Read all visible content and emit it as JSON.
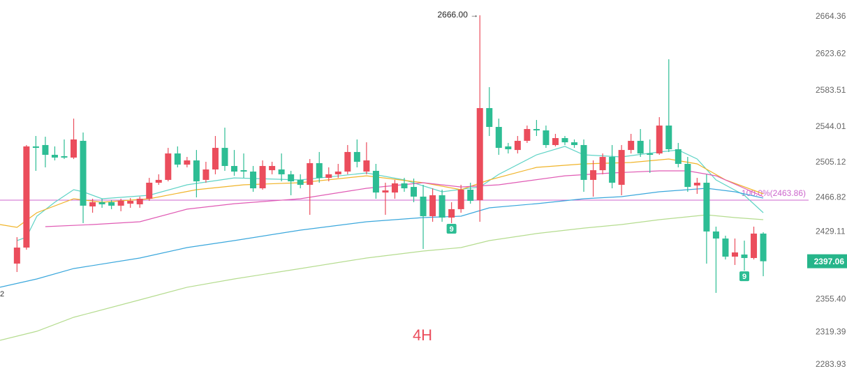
{
  "chart_data": {
    "type": "candlestick",
    "timeframe": "4H",
    "xlim": [
      -1.8,
      83.8
    ],
    "ylim": [
      2277.07,
      2682.66
    ],
    "yticks": [
      2664.36,
      2623.62,
      2583.51,
      2544.01,
      2505.12,
      2466.82,
      2429.11,
      {
        "value": 2355.4,
        "label": "2355.40"
      },
      2319.39,
      2283.93
    ],
    "up_color": "#eb4d5c",
    "down_color": "#2dbd94",
    "x": [
      0,
      1,
      2,
      3,
      4,
      5,
      6,
      7,
      8,
      9,
      10,
      11,
      12,
      13,
      14,
      15,
      16,
      17,
      18,
      19,
      20,
      21,
      22,
      23,
      24,
      25,
      26,
      27,
      28,
      29,
      30,
      31,
      32,
      33,
      34,
      35,
      36,
      37,
      38,
      39,
      40,
      41,
      42,
      43,
      44,
      45,
      46,
      47,
      48,
      49,
      50,
      51,
      52,
      53,
      54,
      55,
      56,
      57,
      58,
      59,
      60,
      61,
      62,
      63,
      64,
      65,
      66,
      67,
      68,
      69,
      70,
      71,
      72,
      73,
      74,
      75,
      76,
      77,
      78,
      79
    ],
    "open": [
      2394.5,
      2412.0,
      2522.6,
      2524.1,
      2513.4,
      2511.9,
      2510.4,
      2528.7,
      2457.0,
      2461.6,
      2461.6,
      2457.8,
      2460.0,
      2459.3,
      2465.4,
      2482.9,
      2486.0,
      2514.9,
      2502.7,
      2507.3,
      2486.0,
      2497.4,
      2521.0,
      2501.2,
      2496.6,
      2495.1,
      2476.8,
      2496.6,
      2497.4,
      2492.1,
      2486.0,
      2480.6,
      2504.3,
      2488.2,
      2492.1,
      2495.1,
      2516.5,
      2495.1,
      2495.9,
      2472.2,
      2472.2,
      2482.2,
      2478.3,
      2467.7,
      2446.3,
      2469.2,
      2444.8,
      2454.0,
      2475.3,
      2463.8,
      2564.5,
      2543.9,
      2522.6,
      2518.7,
      2528.7,
      2541.6,
      2540.1,
      2524.1,
      2531.7,
      2527.1,
      2524.1,
      2486.0,
      2496.6,
      2511.1,
      2480.6,
      2518.7,
      2528.7,
      2514.9,
      2514.9,
      2545.4,
      2519.5,
      2503.5,
      2479.9,
      2482.9,
      2429.6,
      2421.9,
      2402.1,
      2404.4,
      2400.6,
      2427.3
    ],
    "high": [
      2423.4,
      2524.1,
      2534.0,
      2533.2,
      2522.6,
      2530.2,
      2553.0,
      2537.8,
      2465.4,
      2465.4,
      2463.9,
      2465.4,
      2466.1,
      2467.7,
      2488.2,
      2492.1,
      2521.0,
      2522.6,
      2511.1,
      2518.7,
      2505.8,
      2534.0,
      2543.1,
      2518.7,
      2514.9,
      2501.2,
      2507.3,
      2505.8,
      2514.9,
      2495.9,
      2492.1,
      2508.8,
      2516.5,
      2499.7,
      2503.5,
      2524.1,
      2530.2,
      2527.1,
      2503.5,
      2482.9,
      2486.0,
      2488.2,
      2487.5,
      2480.6,
      2476.8,
      2475.3,
      2461.6,
      2480.6,
      2482.9,
      2666.0,
      2587.4,
      2553.0,
      2526.4,
      2534.0,
      2545.4,
      2551.5,
      2545.4,
      2536.3,
      2534.0,
      2530.2,
      2530.2,
      2507.3,
      2514.9,
      2524.1,
      2524.1,
      2536.3,
      2541.6,
      2530.2,
      2554.6,
      2617.9,
      2526.4,
      2511.1,
      2488.2,
      2492.1,
      2434.9,
      2425.0,
      2421.9,
      2419.6,
      2434.9,
      2428.8
    ],
    "low": [
      2385.3,
      2409.7,
      2495.9,
      2499.7,
      2507.3,
      2508.8,
      2508.8,
      2438.7,
      2450.1,
      2455.5,
      2454.0,
      2451.7,
      2455.5,
      2455.5,
      2463.1,
      2480.6,
      2484.4,
      2499.7,
      2499.7,
      2466.9,
      2482.9,
      2492.1,
      2495.9,
      2490.5,
      2488.2,
      2473.0,
      2475.3,
      2492.1,
      2484.4,
      2469.2,
      2476.8,
      2447.8,
      2482.9,
      2484.4,
      2488.2,
      2492.1,
      2499.7,
      2492.1,
      2465.4,
      2447.8,
      2465.4,
      2473.0,
      2461.6,
      2410.5,
      2440.2,
      2440.2,
      2438.7,
      2450.1,
      2460.0,
      2440.2,
      2534.0,
      2513.4,
      2514.9,
      2514.9,
      2526.4,
      2534.0,
      2521.0,
      2522.6,
      2524.1,
      2521.0,
      2473.0,
      2467.7,
      2492.1,
      2476.8,
      2469.2,
      2514.9,
      2511.1,
      2493.6,
      2513.4,
      2516.5,
      2499.7,
      2473.0,
      2470.7,
      2394.5,
      2362.5,
      2399.0,
      2393.0,
      2386.8,
      2399.0,
      2380.7
    ],
    "close": [
      2412.0,
      2522.6,
      2521.0,
      2513.4,
      2510.4,
      2510.4,
      2530.2,
      2457.8,
      2461.6,
      2459.3,
      2457.8,
      2463.1,
      2463.1,
      2465.4,
      2482.9,
      2486.0,
      2514.9,
      2502.7,
      2507.3,
      2484.4,
      2497.4,
      2521.0,
      2501.2,
      2495.1,
      2495.1,
      2476.8,
      2501.2,
      2501.2,
      2492.1,
      2484.4,
      2480.6,
      2504.3,
      2488.2,
      2492.1,
      2495.1,
      2516.5,
      2505.8,
      2507.3,
      2472.2,
      2474.5,
      2482.2,
      2476.8,
      2467.7,
      2446.3,
      2469.2,
      2444.8,
      2454.0,
      2475.3,
      2463.1,
      2564.5,
      2543.9,
      2521.0,
      2519.5,
      2528.7,
      2541.6,
      2540.1,
      2524.1,
      2531.7,
      2527.1,
      2524.1,
      2486.0,
      2496.6,
      2511.1,
      2482.9,
      2518.7,
      2528.7,
      2514.9,
      2513.4,
      2545.4,
      2519.5,
      2503.5,
      2478.3,
      2482.9,
      2429.6,
      2421.9,
      2402.1,
      2406.7,
      2400.6,
      2427.3,
      2397.06
    ],
    "lines": [
      {
        "color": "#5fd3c6",
        "x": [
          0,
          1,
          2.1,
          4,
          6,
          7,
          9,
          14,
          18,
          23,
          30,
          37,
          41,
          45,
          49,
          51,
          55,
          58,
          60,
          64,
          68,
          70,
          72,
          74,
          77,
          79
        ],
        "values": [
          2419.6,
          2423.4,
          2446.3,
          2461.6,
          2475.3,
          2473.0,
          2465.4,
          2469.2,
          2480.6,
          2488.2,
          2486.0,
          2493.6,
          2486.0,
          2473.0,
          2478.3,
          2492.1,
          2513.4,
          2522.6,
          2513.4,
          2511.1,
          2516.5,
          2518.7,
          2508.8,
          2486.0,
          2469.2,
          2450.1
        ]
      },
      {
        "color": "#f0b429",
        "x": [
          -1.8,
          0,
          2.1,
          6,
          9,
          14,
          19,
          24,
          30,
          37,
          43,
          47,
          50,
          55,
          60,
          65,
          69,
          72,
          75,
          79
        ],
        "values": [
          2437.2,
          2434.1,
          2450.1,
          2465.4,
          2461.6,
          2465.4,
          2475.3,
          2480.6,
          2482.9,
          2490.5,
          2482.9,
          2475.3,
          2486.0,
          2499.7,
          2503.5,
          2505.0,
          2508.8,
          2503.5,
          2486.0,
          2470.7
        ]
      },
      {
        "color": "#e05ab4",
        "x": [
          3,
          8,
          13,
          18,
          23,
          30,
          37,
          43,
          47,
          51,
          58,
          63,
          68,
          71,
          74,
          77,
          79
        ],
        "values": [
          2434.9,
          2437.2,
          2440.2,
          2454.0,
          2460.0,
          2465.4,
          2476.8,
          2482.9,
          2478.3,
          2480.6,
          2490.5,
          2493.6,
          2495.9,
          2495.9,
          2490.5,
          2476.8,
          2467.7
        ]
      },
      {
        "color": "#3aa7dc",
        "x": [
          -1.8,
          2.1,
          6,
          13,
          18,
          23,
          30,
          37,
          43,
          47,
          50,
          55,
          60,
          64,
          68,
          73,
          76,
          79
        ],
        "values": [
          2368.6,
          2377.7,
          2389.1,
          2400.6,
          2412.0,
          2419.6,
          2431.1,
          2440.2,
          2444.8,
          2446.3,
          2455.5,
          2460.0,
          2465.4,
          2467.7,
          2473.0,
          2476.8,
          2473.0,
          2466.1
        ]
      },
      {
        "color": "#b5dc8f",
        "x": [
          -1.8,
          2.1,
          6,
          13,
          18,
          23,
          30,
          37,
          43,
          47,
          50,
          55,
          60,
          64,
          68,
          73,
          76,
          79
        ],
        "values": [
          2310.6,
          2320.5,
          2335.8,
          2354.8,
          2368.6,
          2377.7,
          2389.1,
          2400.6,
          2408.2,
          2412.0,
          2419.6,
          2427.3,
          2433.3,
          2437.2,
          2442.5,
          2447.8,
          2444.8,
          2442.5
        ]
      }
    ],
    "level": {
      "value": 2463.86,
      "label": "100.0%(2463.86)",
      "color": "#cc66cc"
    },
    "last_price": 2397.06,
    "annotation": {
      "x": 49,
      "value": 2666,
      "label": "2666.00 →"
    },
    "markers": [
      {
        "x": 46,
        "label": "9"
      },
      {
        "x": 77,
        "label": "9"
      }
    ],
    "edge_label": "2"
  }
}
